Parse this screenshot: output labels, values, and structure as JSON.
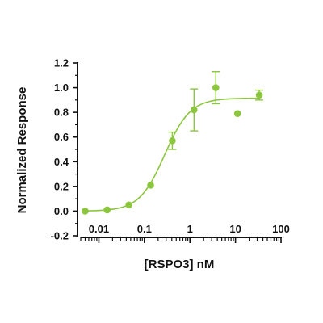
{
  "chart_data": {
    "type": "scatter",
    "title": "",
    "xlabel": "[RSPO3] nM",
    "ylabel": "Normalized Response",
    "x_scale": "log",
    "xlim": [
      0.004,
      100
    ],
    "ylim": [
      -0.2,
      1.2
    ],
    "x_ticks": [
      {
        "value": 0.01,
        "label": "0.01"
      },
      {
        "value": 0.1,
        "label": "0.1"
      },
      {
        "value": 1,
        "label": "1"
      },
      {
        "value": 10,
        "label": "10"
      },
      {
        "value": 100,
        "label": "100"
      }
    ],
    "y_ticks": [
      {
        "value": -0.2,
        "label": "-0.2"
      },
      {
        "value": 0.0,
        "label": "0.0"
      },
      {
        "value": 0.2,
        "label": "0.2"
      },
      {
        "value": 0.4,
        "label": "0.4"
      },
      {
        "value": 0.6,
        "label": "0.6"
      },
      {
        "value": 0.8,
        "label": "0.8"
      },
      {
        "value": 1.0,
        "label": "1.0"
      },
      {
        "value": 1.2,
        "label": "1.2"
      }
    ],
    "grid": false,
    "legend": "none",
    "color": "#8cc63f",
    "points": [
      {
        "x": 0.005,
        "y": 0.0,
        "err": 0.0
      },
      {
        "x": 0.0152,
        "y": 0.01,
        "err": 0.0
      },
      {
        "x": 0.0457,
        "y": 0.05,
        "err": 0.0
      },
      {
        "x": 0.137,
        "y": 0.21,
        "err": 0.0
      },
      {
        "x": 0.41,
        "y": 0.57,
        "err": 0.07
      },
      {
        "x": 1.23,
        "y": 0.82,
        "err": 0.17
      },
      {
        "x": 3.7,
        "y": 1.0,
        "err": 0.13
      },
      {
        "x": 11.1,
        "y": 0.79,
        "err": 0.0
      },
      {
        "x": 33.3,
        "y": 0.94,
        "err": 0.04
      }
    ],
    "fit": {
      "model": "4PL",
      "bottom": 0.0,
      "top": 0.915,
      "ec50": 0.28,
      "hill": 1.55,
      "x_range": [
        0.005,
        33.3
      ]
    }
  }
}
